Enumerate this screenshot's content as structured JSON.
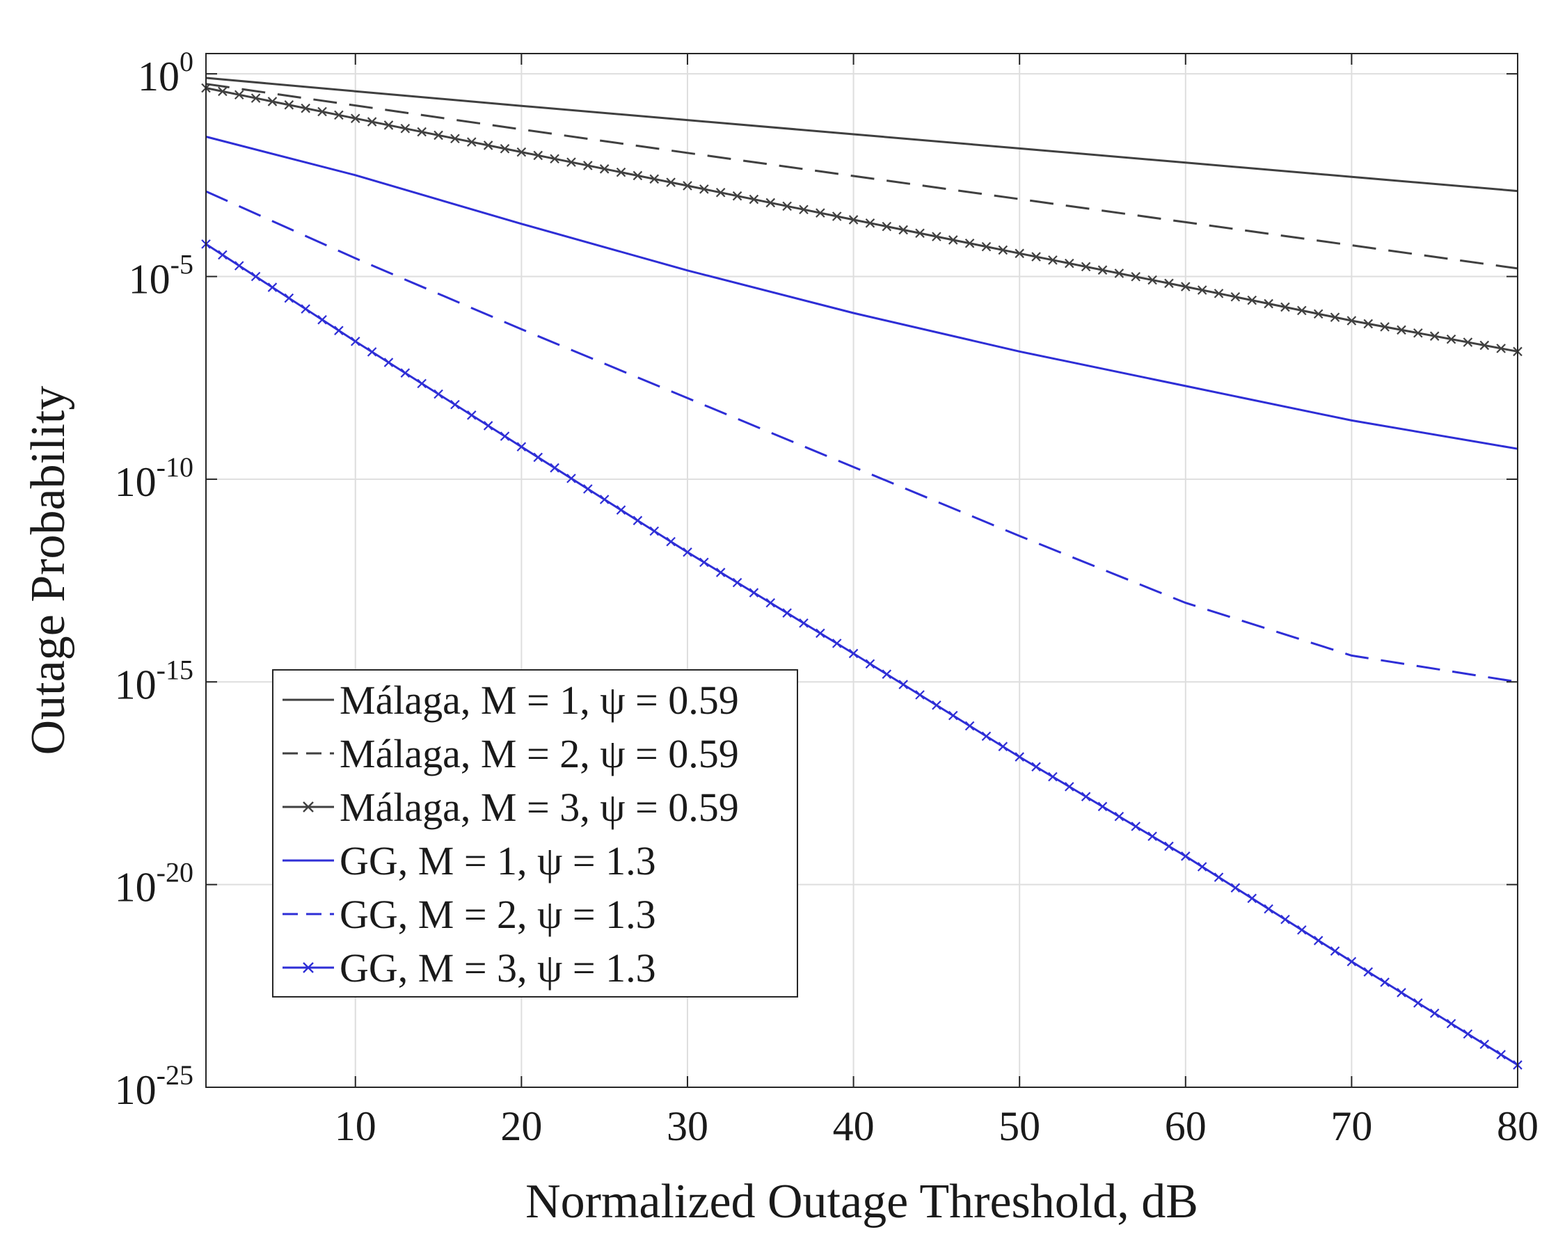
{
  "chart_data": {
    "type": "line",
    "title": "",
    "xlabel": "Normalized Outage Threshold, dB",
    "ylabel": "Outage Probability",
    "xlim": [
      1,
      80
    ],
    "ylim_exponent": [
      -25,
      0.5
    ],
    "yscale": "log",
    "grid": true,
    "legend_location": "bottom-left",
    "x_ticks": [
      10,
      20,
      30,
      40,
      50,
      60,
      70,
      80
    ],
    "y_ticks": [
      {
        "base": "10",
        "exp": "0",
        "value": 0
      },
      {
        "base": "10",
        "exp": "-5",
        "value": -5
      },
      {
        "base": "10",
        "exp": "-10",
        "value": -10
      },
      {
        "base": "10",
        "exp": "-15",
        "value": -15
      },
      {
        "base": "10",
        "exp": "-20",
        "value": -20
      },
      {
        "base": "10",
        "exp": "-25",
        "value": -25
      }
    ],
    "x": [
      1,
      10,
      20,
      30,
      40,
      50,
      60,
      70,
      80
    ],
    "series": [
      {
        "name": "Málaga, M = 1, ψ = 0.59",
        "color": "#404040",
        "style": "solid",
        "marker": "none",
        "log10_values": [
          -0.1,
          -0.43,
          -0.79,
          -1.14,
          -1.49,
          -1.84,
          -2.19,
          -2.54,
          -2.89
        ]
      },
      {
        "name": "Málaga, M = 2, ψ = 0.59",
        "color": "#404040",
        "style": "dashed",
        "marker": "none",
        "log10_values": [
          -0.25,
          -0.78,
          -1.37,
          -1.95,
          -2.52,
          -3.09,
          -3.66,
          -4.23,
          -4.8
        ]
      },
      {
        "name": "Málaga, M = 3, ψ = 0.59",
        "color": "#404040",
        "style": "solid",
        "marker": "x",
        "log10_values": [
          -0.35,
          -1.1,
          -1.93,
          -2.76,
          -3.6,
          -4.43,
          -5.25,
          -6.09,
          -6.85
        ]
      },
      {
        "name": "GG, M = 1, ψ = 1.3",
        "color": "#2e2ed6",
        "style": "solid",
        "marker": "none",
        "log10_values": [
          -1.55,
          -2.5,
          -3.7,
          -4.85,
          -5.9,
          -6.85,
          -7.7,
          -8.55,
          -9.25
        ]
      },
      {
        "name": "GG, M = 2, ψ = 1.3",
        "color": "#2e2ed6",
        "style": "dashed",
        "marker": "none",
        "log10_values": [
          -2.9,
          -4.55,
          -6.3,
          -8.0,
          -9.7,
          -11.4,
          -13.05,
          -14.35,
          -15.0
        ]
      },
      {
        "name": "GG, M = 3, ψ = 1.3",
        "color": "#2e2ed6",
        "style": "solid",
        "marker": "x",
        "log10_values": [
          -4.2,
          -6.6,
          -9.2,
          -11.8,
          -14.3,
          -16.85,
          -19.3,
          -21.9,
          -24.45
        ]
      }
    ]
  }
}
